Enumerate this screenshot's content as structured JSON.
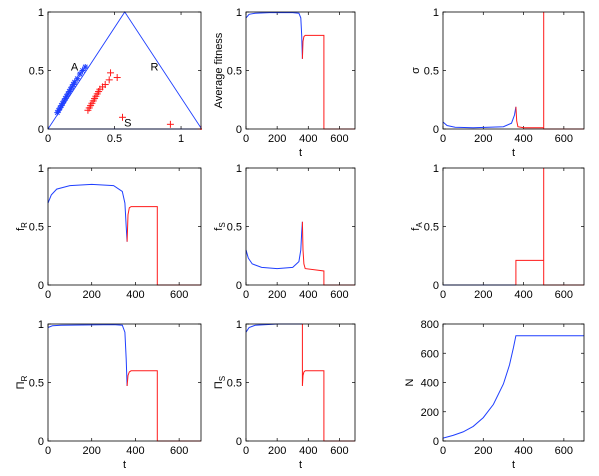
{
  "colors": {
    "blue": "#1f3fff",
    "red": "#ff1a1a",
    "axis": "#000000",
    "tick_label": "#000000"
  },
  "chart_data": [
    {
      "id": "p1",
      "type": "scatter",
      "xlim": [
        0,
        1.15
      ],
      "ylim": [
        0,
        1
      ],
      "xticks": [
        0,
        0.5,
        1
      ],
      "yticks": [
        0,
        0.5,
        1
      ],
      "xtick_labels": [
        "0",
        "0.5",
        "1"
      ],
      "ytick_labels": [
        "0",
        "0.5",
        "1"
      ],
      "xlabel": "",
      "ylabel": "",
      "triangle": [
        [
          0,
          0
        ],
        [
          0.577,
          1
        ],
        [
          1.155,
          0
        ],
        [
          0,
          0
        ]
      ],
      "annotations": [
        {
          "text": "A",
          "x": 0.2,
          "y": 0.5
        },
        {
          "text": "R",
          "x": 0.8,
          "y": 0.5
        },
        {
          "text": "S",
          "x": 0.6,
          "y": 0.02
        }
      ],
      "series": [
        {
          "color": "blue",
          "marker": "*",
          "points": [
            [
              0.07,
              0.14
            ],
            [
              0.08,
              0.16
            ],
            [
              0.09,
              0.18
            ],
            [
              0.1,
              0.2
            ],
            [
              0.11,
              0.22
            ],
            [
              0.12,
              0.24
            ],
            [
              0.13,
              0.26
            ],
            [
              0.14,
              0.28
            ],
            [
              0.15,
              0.3
            ],
            [
              0.16,
              0.32
            ],
            [
              0.17,
              0.34
            ],
            [
              0.18,
              0.36
            ],
            [
              0.19,
              0.38
            ],
            [
              0.2,
              0.4
            ],
            [
              0.22,
              0.43
            ],
            [
              0.24,
              0.47
            ],
            [
              0.26,
              0.5
            ],
            [
              0.28,
              0.53
            ]
          ]
        },
        {
          "color": "red",
          "marker": "+",
          "points": [
            [
              0.3,
              0.16
            ],
            [
              0.31,
              0.18
            ],
            [
              0.32,
              0.2
            ],
            [
              0.33,
              0.22
            ],
            [
              0.34,
              0.24
            ],
            [
              0.35,
              0.26
            ],
            [
              0.36,
              0.28
            ],
            [
              0.37,
              0.3
            ],
            [
              0.38,
              0.32
            ],
            [
              0.39,
              0.34
            ],
            [
              0.41,
              0.36
            ],
            [
              0.43,
              0.38
            ],
            [
              0.46,
              0.42
            ],
            [
              0.47,
              0.48
            ],
            [
              0.52,
              0.44
            ],
            [
              0.56,
              0.1
            ],
            [
              0.92,
              0.04
            ],
            [
              1.15,
              0.0
            ]
          ]
        }
      ]
    },
    {
      "id": "p2",
      "type": "line",
      "xlim": [
        0,
        700
      ],
      "ylim": [
        0,
        1
      ],
      "xticks": [
        0,
        200,
        400,
        600
      ],
      "yticks": [
        0,
        0.5,
        1
      ],
      "xtick_labels": [
        "0",
        "200",
        "400",
        "600"
      ],
      "ytick_labels": [
        "0",
        "0.5",
        "1"
      ],
      "xlabel": "t",
      "ylabel": "Average fitness",
      "series": [
        {
          "color": "blue",
          "points": [
            [
              0,
              0.95
            ],
            [
              20,
              0.98
            ],
            [
              60,
              0.99
            ],
            [
              150,
              0.995
            ],
            [
              300,
              0.995
            ],
            [
              340,
              0.99
            ],
            [
              352,
              0.95
            ],
            [
              358,
              0.8
            ],
            [
              362,
              0.6
            ]
          ]
        },
        {
          "color": "red",
          "points": [
            [
              362,
              0.6
            ],
            [
              366,
              0.75
            ],
            [
              372,
              0.79
            ],
            [
              380,
              0.8
            ],
            [
              500,
              0.8
            ],
            [
              500,
              0
            ],
            [
              700,
              0
            ]
          ]
        }
      ]
    },
    {
      "id": "p3",
      "type": "line",
      "xlim": [
        0,
        700
      ],
      "ylim": [
        0,
        1
      ],
      "xticks": [
        0,
        200,
        400,
        600
      ],
      "yticks": [
        0,
        0.5,
        1
      ],
      "xtick_labels": [
        "0",
        "200",
        "400",
        "600"
      ],
      "ytick_labels": [
        "0",
        "0.5",
        "1"
      ],
      "xlabel": "t",
      "ylabel": "σ",
      "series": [
        {
          "color": "blue",
          "points": [
            [
              0,
              0.06
            ],
            [
              20,
              0.03
            ],
            [
              60,
              0.015
            ],
            [
              150,
              0.01
            ],
            [
              300,
              0.02
            ],
            [
              340,
              0.05
            ],
            [
              355,
              0.12
            ],
            [
              362,
              0.19
            ]
          ]
        },
        {
          "color": "red",
          "points": [
            [
              362,
              0.19
            ],
            [
              366,
              0.07
            ],
            [
              372,
              0.02
            ],
            [
              400,
              0.01
            ],
            [
              500,
              0.01
            ],
            [
              500,
              1.0
            ],
            [
              500,
              0
            ],
            [
              700,
              0
            ]
          ]
        }
      ]
    },
    {
      "id": "p4",
      "type": "line",
      "xlim": [
        0,
        700
      ],
      "ylim": [
        0,
        1
      ],
      "xticks": [
        0,
        200,
        400,
        600
      ],
      "yticks": [
        0,
        0.5,
        1
      ],
      "xtick_labels": [
        "0",
        "200",
        "400",
        "600"
      ],
      "ytick_labels": [
        "0",
        "0.5",
        "1"
      ],
      "xlabel": "",
      "ylabel": "f_R",
      "series": [
        {
          "color": "blue",
          "points": [
            [
              0,
              0.7
            ],
            [
              15,
              0.77
            ],
            [
              40,
              0.82
            ],
            [
              100,
              0.85
            ],
            [
              200,
              0.86
            ],
            [
              300,
              0.85
            ],
            [
              340,
              0.8
            ],
            [
              352,
              0.7
            ],
            [
              358,
              0.5
            ],
            [
              362,
              0.37
            ]
          ]
        },
        {
          "color": "red",
          "points": [
            [
              362,
              0.37
            ],
            [
              366,
              0.6
            ],
            [
              372,
              0.66
            ],
            [
              380,
              0.67
            ],
            [
              500,
              0.67
            ],
            [
              500,
              0
            ],
            [
              700,
              0
            ]
          ]
        }
      ]
    },
    {
      "id": "p5",
      "type": "line",
      "xlim": [
        0,
        700
      ],
      "ylim": [
        0,
        1
      ],
      "xticks": [
        0,
        200,
        400,
        600
      ],
      "yticks": [
        0,
        0.5,
        1
      ],
      "xtick_labels": [
        "0",
        "200",
        "400",
        "600"
      ],
      "ytick_labels": [
        "0",
        "0.5",
        "1"
      ],
      "xlabel": "",
      "ylabel": "f_S",
      "series": [
        {
          "color": "blue",
          "points": [
            [
              0,
              0.3
            ],
            [
              15,
              0.23
            ],
            [
              40,
              0.18
            ],
            [
              100,
              0.15
            ],
            [
              200,
              0.14
            ],
            [
              300,
              0.15
            ],
            [
              340,
              0.2
            ],
            [
              352,
              0.3
            ],
            [
              358,
              0.45
            ],
            [
              362,
              0.54
            ]
          ]
        },
        {
          "color": "red",
          "points": [
            [
              362,
              0.54
            ],
            [
              366,
              0.3
            ],
            [
              372,
              0.18
            ],
            [
              380,
              0.14
            ],
            [
              500,
              0.12
            ],
            [
              500,
              0
            ],
            [
              700,
              0
            ]
          ]
        }
      ]
    },
    {
      "id": "p6",
      "type": "line",
      "xlim": [
        0,
        700
      ],
      "ylim": [
        0,
        1
      ],
      "xticks": [
        0,
        200,
        400,
        600
      ],
      "yticks": [
        0,
        0.5,
        1
      ],
      "xtick_labels": [
        "0",
        "200",
        "400",
        "600"
      ],
      "ytick_labels": [
        "0",
        "0.5",
        "1"
      ],
      "xlabel": "",
      "ylabel": "f_A",
      "series": [
        {
          "color": "blue",
          "points": [
            [
              0,
              0
            ],
            [
              362,
              0
            ]
          ]
        },
        {
          "color": "red",
          "points": [
            [
              362,
              0
            ],
            [
              362,
              0.21
            ],
            [
              500,
              0.21
            ],
            [
              500,
              1.0
            ],
            [
              500,
              0
            ],
            [
              700,
              0
            ]
          ]
        }
      ]
    },
    {
      "id": "p7",
      "type": "line",
      "xlim": [
        0,
        700
      ],
      "ylim": [
        0,
        1
      ],
      "xticks": [
        0,
        200,
        400,
        600
      ],
      "yticks": [
        0,
        0.5,
        1
      ],
      "xtick_labels": [
        "0",
        "200",
        "400",
        "600"
      ],
      "ytick_labels": [
        "0",
        "0.5",
        "1"
      ],
      "xlabel": "t",
      "ylabel": "Π_R",
      "series": [
        {
          "color": "blue",
          "points": [
            [
              0,
              0.97
            ],
            [
              20,
              0.985
            ],
            [
              60,
              0.99
            ],
            [
              300,
              0.995
            ],
            [
              340,
              0.99
            ],
            [
              352,
              0.93
            ],
            [
              358,
              0.7
            ],
            [
              362,
              0.47
            ]
          ]
        },
        {
          "color": "red",
          "points": [
            [
              362,
              0.47
            ],
            [
              366,
              0.56
            ],
            [
              372,
              0.59
            ],
            [
              380,
              0.6
            ],
            [
              500,
              0.6
            ],
            [
              500,
              0
            ],
            [
              700,
              0
            ]
          ]
        }
      ]
    },
    {
      "id": "p8",
      "type": "line",
      "xlim": [
        0,
        700
      ],
      "ylim": [
        0,
        1
      ],
      "xticks": [
        0,
        200,
        400,
        600
      ],
      "yticks": [
        0,
        0.5,
        1
      ],
      "xtick_labels": [
        "0",
        "200",
        "400",
        "600"
      ],
      "ytick_labels": [
        "0",
        "0.5",
        "1"
      ],
      "xlabel": "t",
      "ylabel": "Π_S",
      "series": [
        {
          "color": "blue",
          "points": [
            [
              0,
              0.93
            ],
            [
              20,
              0.97
            ],
            [
              60,
              0.99
            ],
            [
              200,
              1.0
            ],
            [
              362,
              1.0
            ]
          ]
        },
        {
          "color": "red",
          "points": [
            [
              362,
              1.0
            ],
            [
              362,
              0.47
            ],
            [
              366,
              0.56
            ],
            [
              372,
              0.59
            ],
            [
              380,
              0.6
            ],
            [
              500,
              0.6
            ],
            [
              500,
              0
            ],
            [
              700,
              0
            ]
          ]
        }
      ]
    },
    {
      "id": "p9",
      "type": "line",
      "xlim": [
        0,
        700
      ],
      "ylim": [
        0,
        800
      ],
      "xticks": [
        0,
        200,
        400,
        600
      ],
      "yticks": [
        0,
        200,
        400,
        600,
        800
      ],
      "xtick_labels": [
        "0",
        "200",
        "400",
        "600"
      ],
      "ytick_labels": [
        "0",
        "200",
        "400",
        "600",
        "800"
      ],
      "xlabel": "t",
      "ylabel": "N",
      "series": [
        {
          "color": "blue",
          "points": [
            [
              0,
              20
            ],
            [
              50,
              38
            ],
            [
              100,
              62
            ],
            [
              150,
              100
            ],
            [
              200,
              160
            ],
            [
              250,
              250
            ],
            [
              300,
              390
            ],
            [
              330,
              520
            ],
            [
              350,
              640
            ],
            [
              362,
              720
            ],
            [
              400,
              720
            ],
            [
              700,
              720
            ]
          ]
        }
      ]
    }
  ]
}
